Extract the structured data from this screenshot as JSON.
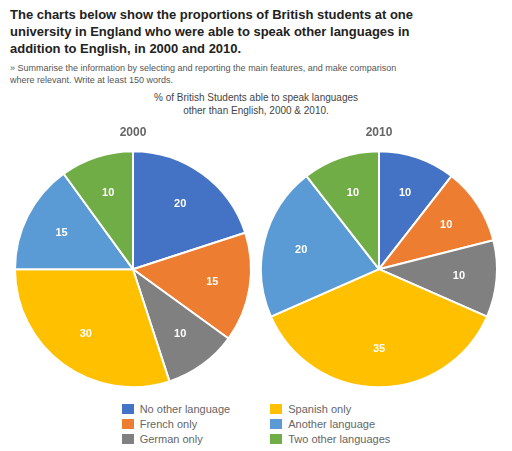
{
  "title": "The charts below show the proportions of British students at one\nuniversity in England who were able to speak other languages in\naddition to English, in 2000 and 2010.",
  "subtitle": "» Summarise the information by selecting and reporting the main features, and make comparison\nwhere relevant. Write at least 150 words.",
  "annotations": [
    "% of British Students able to speak languages\nother than English, 2000 & 2010."
  ],
  "legend": "bottom",
  "chart_data": [
    {
      "type": "pie",
      "title": "2000",
      "categories": [
        "No other language",
        "French only",
        "German only",
        "Spanish only",
        "Another language",
        "Two other languages"
      ],
      "values": [
        20,
        15,
        10,
        30,
        15,
        10
      ],
      "colors": [
        "#4472C4",
        "#ED7D31",
        "#808080",
        "#FFC000",
        "#5B9BD5",
        "#70AD47"
      ],
      "data_labels": true
    },
    {
      "type": "pie",
      "title": "2010",
      "categories": [
        "No other language",
        "French only",
        "German only",
        "Spanish only",
        "Another language",
        "Two other languages"
      ],
      "values": [
        10,
        10,
        10,
        35,
        20,
        10
      ],
      "colors": [
        "#4472C4",
        "#ED7D31",
        "#808080",
        "#FFC000",
        "#5B9BD5",
        "#70AD47"
      ],
      "data_labels": true
    }
  ]
}
